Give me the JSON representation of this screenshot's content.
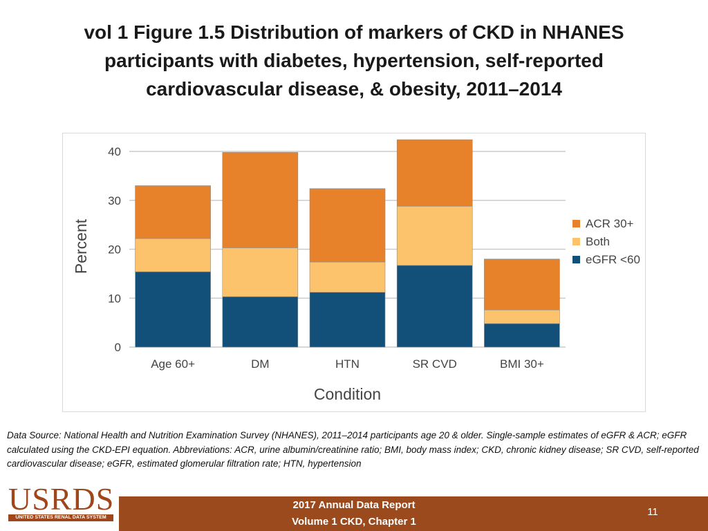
{
  "slide": {
    "title": "vol 1 Figure 1.5 Distribution of markers of CKD in NHANES participants with diabetes, hypertension, self-reported cardiovascular disease, & obesity, 2011–2014",
    "footnote": "Data Source: National Health and Nutrition Examination Survey (NHANES), 2011–2014 participants age 20 & older. Single-sample estimates of eGFR & ACR; eGFR calculated using the CKD-EPI equation. Abbreviations: ACR, urine albumin/creatinine ratio; BMI, body mass index; CKD, chronic kidney disease; SR CVD, self-reported cardiovascular disease; eGFR, estimated glomerular filtration rate; HTN, hypertension",
    "footer_line1": "2017 Annual Data Report",
    "footer_line2": "Volume 1 CKD, Chapter 1",
    "page_number": "11",
    "logo_text": "USRDS",
    "logo_subtext": "UNITED STATES RENAL DATA SYSTEM"
  },
  "chart_data": {
    "type": "bar",
    "stacked": true,
    "categories": [
      "Age 60+",
      "DM",
      "HTN",
      "SR CVD",
      "BMI 30+"
    ],
    "series": [
      {
        "name": "eGFR <60",
        "color": "#12507a",
        "values": [
          15.4,
          10.3,
          11.2,
          16.7,
          4.8
        ]
      },
      {
        "name": "Both",
        "color": "#fdc36c",
        "values": [
          6.8,
          10.0,
          6.2,
          12.1,
          2.8
        ]
      },
      {
        "name": "ACR 30+",
        "color": "#e8822a",
        "values": [
          10.8,
          19.5,
          15.0,
          13.6,
          10.4
        ]
      }
    ],
    "legend_order": [
      "ACR 30+",
      "Both",
      "eGFR <60"
    ],
    "xlabel": "Condition",
    "ylabel": "Percent",
    "ylim": [
      0,
      40
    ],
    "yticks": [
      0,
      10,
      20,
      30,
      40
    ],
    "grid": true,
    "legend_position": "right"
  }
}
